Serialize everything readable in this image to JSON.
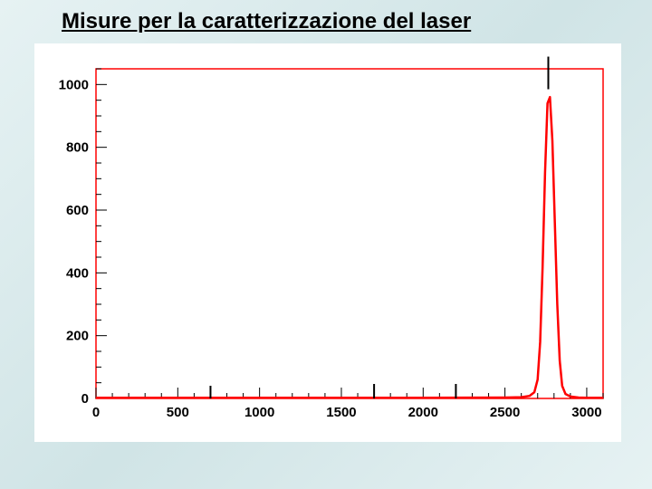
{
  "title": "Misure per la caratterizzazione del laser",
  "chart": {
    "type": "line-histogram",
    "plot_bg": "#ffffff",
    "frame_color": "#ff0000",
    "frame_width": 1.5,
    "line_color": "#ff0000",
    "line_width": 2.5,
    "marker_color": "#000000",
    "x": {
      "min": 0,
      "max": 3100,
      "ticks": [
        0,
        500,
        1000,
        1500,
        2000,
        2500,
        3000
      ],
      "minor_step": 100,
      "label_fontsize": 15
    },
    "y": {
      "min": 0,
      "max": 1050,
      "ticks": [
        0,
        200,
        400,
        600,
        800,
        1000
      ],
      "minor_step": 50,
      "label_fontsize": 15
    },
    "series": {
      "x": [
        0,
        500,
        1000,
        1500,
        2000,
        2500,
        2600,
        2650,
        2680,
        2700,
        2715,
        2730,
        2745,
        2760,
        2775,
        2790,
        2805,
        2820,
        2835,
        2850,
        2870,
        2900,
        2950,
        3000,
        3100
      ],
      "y": [
        2,
        2,
        2,
        2,
        2,
        3,
        4,
        8,
        20,
        60,
        180,
        420,
        720,
        940,
        960,
        820,
        560,
        300,
        120,
        40,
        14,
        6,
        3,
        2,
        2
      ]
    },
    "markers": [
      {
        "x": 700,
        "y": 0,
        "len": 14
      },
      {
        "x": 1700,
        "y": 0,
        "len": 16
      },
      {
        "x": 2200,
        "y": 0,
        "len": 16
      },
      {
        "x": 2765,
        "y": 985,
        "len": 36
      }
    ]
  }
}
